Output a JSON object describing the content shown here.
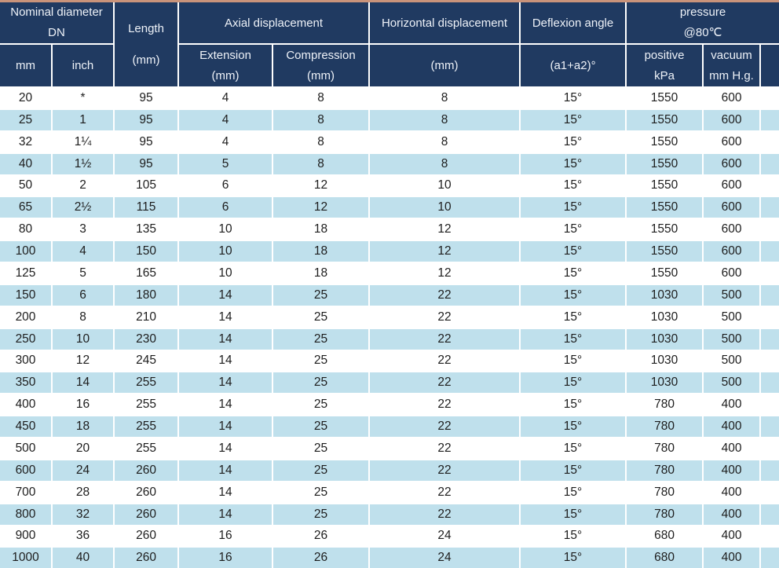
{
  "table": {
    "title": "expansion-joint-specification-table",
    "colors": {
      "header_bg": "#203a61",
      "header_text": "#eef2f8",
      "row_bg": "#ffffff",
      "row_alt_bg": "#bfe0ec",
      "top_border": "#c9937a",
      "body_text": "#1d1d1d"
    },
    "header": {
      "nominal_diameter_line1": "Nominal diameter",
      "nominal_diameter_line2": "DN",
      "mm_label": "mm",
      "inch_label": "inch",
      "length_line1": "Length",
      "length_line2": "(mm)",
      "axial_label": "Axial displacement",
      "extension_line1": "Extension",
      "extension_line2": "(mm)",
      "compression_line1": "Compression",
      "compression_line2": "(mm)",
      "horizontal_label": "Horizontal displacement",
      "horizontal_unit": "(mm)",
      "deflexion_label": "Deflexion angle",
      "deflexion_unit": "(a1+a2)°",
      "pressure_line1": "pressure",
      "pressure_line2": "@80℃",
      "positive_line1": "positive",
      "positive_line2": "kPa",
      "vacuum_line1": "vacuum",
      "vacuum_line2": "mm H.g."
    },
    "rows": [
      [
        "20",
        "*",
        "95",
        "4",
        "8",
        "8",
        "15°",
        "1550",
        "600"
      ],
      [
        "25",
        "1",
        "95",
        "4",
        "8",
        "8",
        "15°",
        "1550",
        "600"
      ],
      [
        "32",
        "1¼",
        "95",
        "4",
        "8",
        "8",
        "15°",
        "1550",
        "600"
      ],
      [
        "40",
        "1½",
        "95",
        "5",
        "8",
        "8",
        "15°",
        "1550",
        "600"
      ],
      [
        "50",
        "2",
        "105",
        "6",
        "12",
        "10",
        "15°",
        "1550",
        "600"
      ],
      [
        "65",
        "2½",
        "115",
        "6",
        "12",
        "10",
        "15°",
        "1550",
        "600"
      ],
      [
        "80",
        "3",
        "135",
        "10",
        "18",
        "12",
        "15°",
        "1550",
        "600"
      ],
      [
        "100",
        "4",
        "150",
        "10",
        "18",
        "12",
        "15°",
        "1550",
        "600"
      ],
      [
        "125",
        "5",
        "165",
        "10",
        "18",
        "12",
        "15°",
        "1550",
        "600"
      ],
      [
        "150",
        "6",
        "180",
        "14",
        "25",
        "22",
        "15°",
        "1030",
        "500"
      ],
      [
        "200",
        "8",
        "210",
        "14",
        "25",
        "22",
        "15°",
        "1030",
        "500"
      ],
      [
        "250",
        "10",
        "230",
        "14",
        "25",
        "22",
        "15°",
        "1030",
        "500"
      ],
      [
        "300",
        "12",
        "245",
        "14",
        "25",
        "22",
        "15°",
        "1030",
        "500"
      ],
      [
        "350",
        "14",
        "255",
        "14",
        "25",
        "22",
        "15°",
        "1030",
        "500"
      ],
      [
        "400",
        "16",
        "255",
        "14",
        "25",
        "22",
        "15°",
        "780",
        "400"
      ],
      [
        "450",
        "18",
        "255",
        "14",
        "25",
        "22",
        "15°",
        "780",
        "400"
      ],
      [
        "500",
        "20",
        "255",
        "14",
        "25",
        "22",
        "15°",
        "780",
        "400"
      ],
      [
        "600",
        "24",
        "260",
        "14",
        "25",
        "22",
        "15°",
        "780",
        "400"
      ],
      [
        "700",
        "28",
        "260",
        "14",
        "25",
        "22",
        "15°",
        "780",
        "400"
      ],
      [
        "800",
        "32",
        "260",
        "14",
        "25",
        "22",
        "15°",
        "780",
        "400"
      ],
      [
        "900",
        "36",
        "260",
        "16",
        "26",
        "24",
        "15°",
        "680",
        "400"
      ],
      [
        "1000",
        "40",
        "260",
        "16",
        "26",
        "24",
        "15°",
        "680",
        "400"
      ]
    ]
  }
}
